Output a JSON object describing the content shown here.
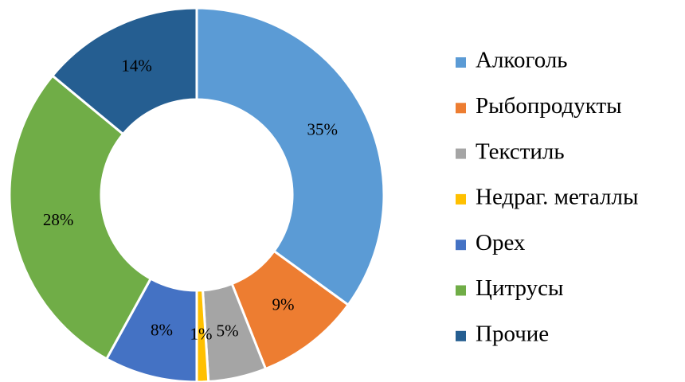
{
  "chart_data": {
    "type": "donut",
    "categories": [
      "Алкоголь",
      "Рыбопродукты",
      "Текстиль",
      "Недраг. металлы",
      "Орех",
      "Цитрусы",
      "Прочие"
    ],
    "values": [
      35,
      9,
      5,
      1,
      8,
      28,
      14
    ],
    "value_labels": [
      "35%",
      "9%",
      "5%",
      "1%",
      "8%",
      "28%",
      "14%"
    ],
    "colors": [
      "#5b9bd5",
      "#ed7d31",
      "#a5a5a5",
      "#ffc000",
      "#4472c4",
      "#70ad47",
      "#255e91"
    ],
    "legend": "right"
  }
}
